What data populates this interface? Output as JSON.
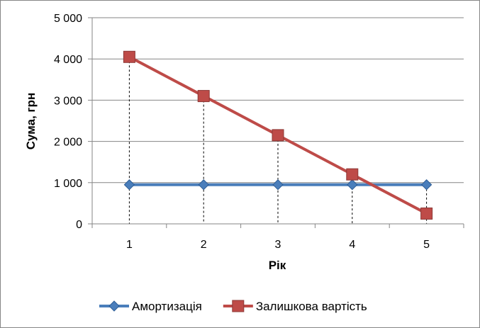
{
  "chart_data": {
    "type": "line",
    "title": "",
    "xlabel": "Рік",
    "ylabel": "Сума, грн",
    "categories": [
      "1",
      "2",
      "3",
      "4",
      "5"
    ],
    "ylim": [
      0,
      5000
    ],
    "yticks": [
      0,
      1000,
      2000,
      3000,
      4000,
      5000
    ],
    "ytick_labels": [
      "0",
      "1 000",
      "2 000",
      "3 000",
      "4 000",
      "5 000"
    ],
    "grid": "horizontal",
    "drop_lines": true,
    "legend_position": "bottom",
    "series": [
      {
        "name": "Амортизація",
        "values": [
          950,
          950,
          950,
          950,
          950
        ],
        "color": "#4a7ebb",
        "marker": "diamond"
      },
      {
        "name": "Залишкова вартість",
        "values": [
          4050,
          3100,
          2150,
          1200,
          250
        ],
        "color": "#be4b48",
        "marker": "square"
      }
    ]
  }
}
